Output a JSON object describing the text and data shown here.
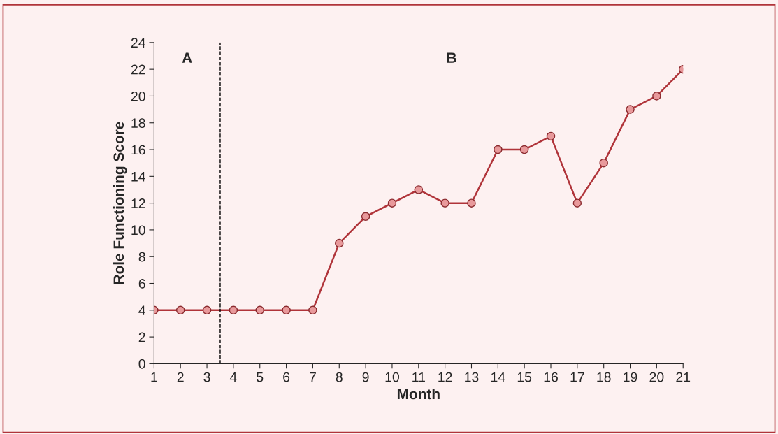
{
  "chart_data": {
    "type": "line",
    "xlabel": "Month",
    "ylabel": "Role Functioning Score",
    "x": [
      1,
      2,
      3,
      4,
      5,
      6,
      7,
      8,
      9,
      10,
      11,
      12,
      13,
      14,
      15,
      16,
      17,
      18,
      19,
      20,
      21
    ],
    "series": [
      {
        "color": "#b0343a",
        "values": [
          4,
          4,
          4,
          4,
          4,
          4,
          4,
          9,
          11,
          12,
          13,
          12,
          12,
          16,
          16,
          17,
          12,
          15,
          19,
          20,
          22
        ]
      }
    ],
    "xlim": [
      1,
      21
    ],
    "xticks": [
      1,
      2,
      3,
      4,
      5,
      6,
      7,
      8,
      9,
      10,
      11,
      12,
      13,
      14,
      15,
      16,
      17,
      18,
      19,
      20,
      21
    ],
    "ylim": [
      0,
      24
    ],
    "yticks": [
      0,
      2,
      4,
      6,
      8,
      10,
      12,
      14,
      16,
      18,
      20,
      22,
      24
    ],
    "ref_lines": [
      {
        "axis": "x",
        "value": 3.5,
        "color": "#000000",
        "line_style": "dashed"
      }
    ],
    "annotations": [
      "A",
      "B"
    ],
    "marker": "circle",
    "line_style": "solid",
    "grid": false,
    "legend": false
  }
}
